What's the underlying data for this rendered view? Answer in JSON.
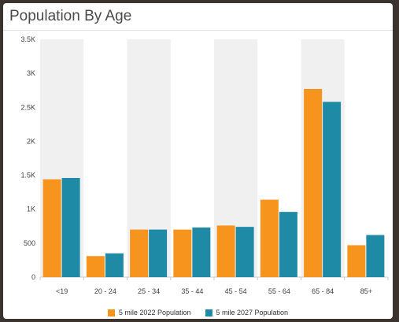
{
  "header": {
    "title": "Population By Age"
  },
  "chart_data": {
    "type": "bar",
    "categories": [
      "<19",
      "20 - 24",
      "25 - 34",
      "35 - 44",
      "45 - 54",
      "55 - 64",
      "65 - 84",
      "85+"
    ],
    "series": [
      {
        "name": "5 mile 2022 Population",
        "color": "#f7941d",
        "values": [
          1440,
          310,
          700,
          700,
          760,
          1140,
          2770,
          470
        ]
      },
      {
        "name": "5 mile 2027 Population",
        "color": "#1f8aa6",
        "values": [
          1460,
          350,
          700,
          730,
          740,
          960,
          2580,
          620
        ]
      }
    ],
    "yticks": [
      "0",
      "500",
      "1K",
      "1.5K",
      "2K",
      "2.5K",
      "3K",
      "3.5K"
    ],
    "ylim": [
      0,
      3500
    ],
    "band_color": "#f0f0f0",
    "legend_position": "bottom"
  }
}
